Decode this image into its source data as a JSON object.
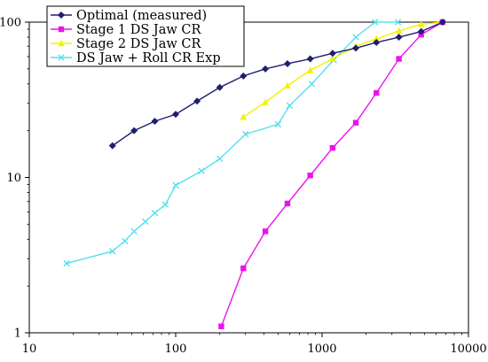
{
  "chart_data": {
    "type": "line",
    "title": "",
    "xlabel": "",
    "ylabel": "",
    "x_scale": "log",
    "y_scale": "log",
    "xlim": [
      10,
      10000
    ],
    "ylim": [
      1,
      100
    ],
    "x_ticks": [
      "10",
      "100",
      "1000",
      "10000"
    ],
    "y_ticks": [
      "1",
      "10",
      "100"
    ],
    "grid": false,
    "legend_position": "top-left",
    "series": [
      {
        "name": "Optimal (measured)",
        "color": "#1f1f6e",
        "marker": "diamond",
        "points": [
          [
            37,
            16
          ],
          [
            52,
            20
          ],
          [
            72,
            23
          ],
          [
            100,
            25.5
          ],
          [
            140,
            31
          ],
          [
            200,
            38
          ],
          [
            290,
            45
          ],
          [
            410,
            50
          ],
          [
            580,
            54
          ],
          [
            830,
            58
          ],
          [
            1180,
            63
          ],
          [
            1700,
            68
          ],
          [
            2350,
            74
          ],
          [
            3350,
            80
          ],
          [
            4750,
            87
          ],
          [
            6650,
            100
          ]
        ]
      },
      {
        "name": "Stage 1 DS Jaw CR",
        "color": "#ee11ee",
        "marker": "square",
        "points": [
          [
            205,
            1.1
          ],
          [
            290,
            2.6
          ],
          [
            410,
            4.5
          ],
          [
            580,
            6.8
          ],
          [
            830,
            10.3
          ],
          [
            1180,
            15.5
          ],
          [
            1700,
            22.5
          ],
          [
            2350,
            35
          ],
          [
            3350,
            58
          ],
          [
            4750,
            83
          ],
          [
            6650,
            100
          ]
        ]
      },
      {
        "name": "Stage 2 DS Jaw CR",
        "color": "#f2f200",
        "marker": "triangle",
        "points": [
          [
            290,
            24.5
          ],
          [
            410,
            30.5
          ],
          [
            580,
            39
          ],
          [
            830,
            49
          ],
          [
            1180,
            58
          ],
          [
            1700,
            70
          ],
          [
            2350,
            78
          ],
          [
            3350,
            88
          ],
          [
            4750,
            97
          ],
          [
            6650,
            100
          ]
        ]
      },
      {
        "name": "DS Jaw + Roll CR Exp",
        "color": "#55e0ee",
        "marker": "x",
        "points": [
          [
            18,
            2.8
          ],
          [
            37,
            3.35
          ],
          [
            45,
            3.9
          ],
          [
            52,
            4.5
          ],
          [
            62,
            5.2
          ],
          [
            72,
            5.9
          ],
          [
            85,
            6.7
          ],
          [
            100,
            8.9
          ],
          [
            150,
            11
          ],
          [
            200,
            13.2
          ],
          [
            300,
            19
          ],
          [
            500,
            22
          ],
          [
            600,
            29
          ],
          [
            850,
            40
          ],
          [
            1200,
            57
          ],
          [
            1700,
            80
          ],
          [
            2300,
            100
          ],
          [
            3300,
            100
          ]
        ]
      }
    ]
  },
  "colors": {
    "axis": "#000000",
    "legend_border": "#000000",
    "background": "#ffffff"
  }
}
